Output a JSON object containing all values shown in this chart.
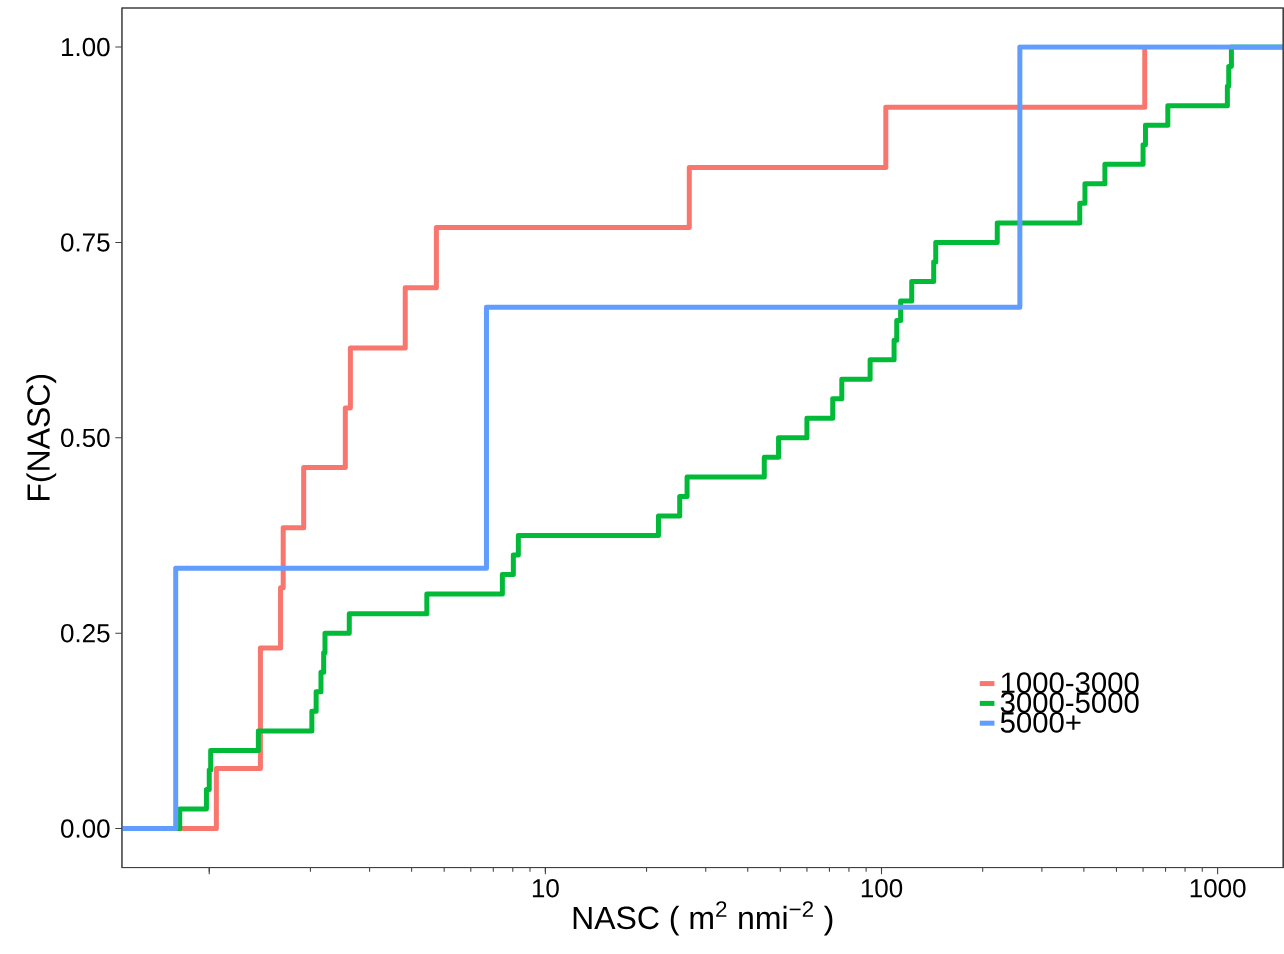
{
  "chart_data": {
    "type": "step",
    "xlabel": "NASC ( m$^{2}$ nmi$^{−2}$ )",
    "ylabel": "F(NASC)",
    "log": "x",
    "xlim": [
      0.55,
      1570
    ],
    "ylim": [
      -0.05,
      1.05
    ],
    "xticks": [
      {
        "value": 1,
        "label": null
      },
      10,
      100,
      1000
    ],
    "yticks": [
      {
        "value": 0,
        "label": "0.00"
      },
      {
        "value": 0.25,
        "label": "0.25"
      },
      {
        "value": 0.5,
        "label": "0.50"
      },
      {
        "value": 0.75,
        "label": "0.75"
      },
      {
        "value": 1,
        "label": "1.00"
      }
    ],
    "legend": "bottom right",
    "series": [
      {
        "name": "1000-3000",
        "color": "#f8766d",
        "x": [
          0.55,
          1.05,
          1.42,
          1.63,
          1.66,
          1.91,
          2.54,
          2.63,
          3.83,
          4.74,
          26.8,
          103,
          607
        ],
        "values": [
          0,
          0.077,
          0.231,
          0.308,
          0.385,
          0.462,
          0.538,
          0.615,
          0.692,
          0.769,
          0.846,
          0.923,
          1.0
        ]
      },
      {
        "name": "3000-5000",
        "color": "#00ba38",
        "x": [
          0.55,
          0.817,
          0.981,
          1.0,
          1.01,
          1.4,
          2.02,
          2.08,
          2.15,
          2.19,
          2.21,
          2.61,
          4.44,
          7.45,
          8.03,
          8.31,
          21.7,
          25.1,
          26.4,
          44.8,
          49.4,
          60.0,
          71.6,
          76.2,
          92.5,
          109,
          111,
          114,
          123,
          143,
          145,
          221,
          389,
          403,
          462,
          600,
          610,
          711,
          1069,
          1079,
          1099,
          1570
        ],
        "values": [
          0,
          0.025,
          0.05,
          0.075,
          0.1,
          0.125,
          0.15,
          0.175,
          0.2,
          0.225,
          0.25,
          0.275,
          0.3,
          0.325,
          0.35,
          0.375,
          0.4,
          0.425,
          0.45,
          0.475,
          0.5,
          0.525,
          0.55,
          0.575,
          0.6,
          0.625,
          0.65,
          0.675,
          0.7,
          0.725,
          0.75,
          0.775,
          0.8,
          0.825,
          0.85,
          0.875,
          0.9,
          0.925,
          0.95,
          0.975,
          1.0,
          1.0
        ]
      },
      {
        "name": "5000+",
        "color": "#619cff",
        "x": [
          0.55,
          0.795,
          6.68,
          258,
          1570
        ],
        "values": [
          0,
          0.333,
          0.667,
          1.0,
          1.0
        ]
      }
    ]
  }
}
